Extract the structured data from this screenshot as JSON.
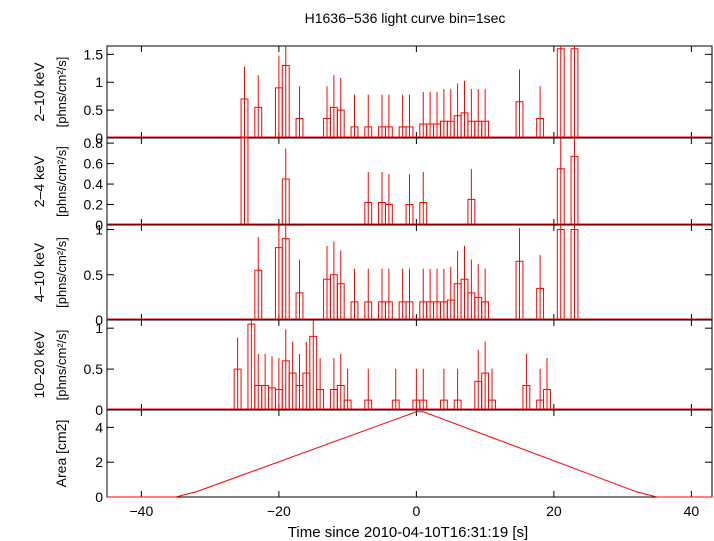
{
  "title": "H1636−536 light curve bin=1sec",
  "xlabel": "Time since 2010-04-10T16:31:19 [s]",
  "xticks": [
    "−40",
    "−20",
    "0",
    "20",
    "40"
  ],
  "colors": {
    "data": "#ff0000",
    "frame": "#000000"
  },
  "chart_data": [
    {
      "type": "line",
      "ylabel_top": "2–10 keV",
      "ylabel_bottom": "[phns/cm²/s]",
      "ylim": [
        0,
        1.65
      ],
      "yticks": [
        "0",
        "0.5",
        "1",
        "1.5"
      ],
      "x": [
        -25,
        -23,
        -20,
        -19,
        -17,
        -13,
        -12,
        -11,
        -9,
        -7,
        -5,
        -4,
        -2,
        -1,
        1,
        2,
        3,
        4,
        5,
        6,
        7,
        8,
        9,
        10,
        15,
        18,
        21,
        23
      ],
      "y": [
        0.7,
        0.55,
        0.9,
        1.3,
        0.35,
        0.35,
        0.55,
        0.5,
        0.2,
        0.2,
        0.2,
        0.2,
        0.2,
        0.2,
        0.25,
        0.25,
        0.25,
        0.3,
        0.3,
        0.4,
        0.45,
        0.3,
        0.3,
        0.3,
        0.65,
        0.35,
        1.6,
        1.6
      ]
    },
    {
      "type": "line",
      "ylabel_top": "2–4 keV",
      "ylabel_bottom": "[phns/cm²/s]",
      "ylim": [
        0,
        0.85
      ],
      "yticks": [
        "0",
        "0.2",
        "0.4",
        "0.6",
        "0.8"
      ],
      "x": [
        -25,
        -19,
        -7,
        -5,
        -4,
        -1,
        1,
        8,
        21,
        23
      ],
      "y": [
        0.85,
        0.45,
        0.22,
        0.22,
        0.2,
        0.2,
        0.22,
        0.25,
        0.55,
        0.67
      ]
    },
    {
      "type": "line",
      "ylabel_top": "4–10 keV",
      "ylabel_bottom": "[phns/cm²/s]",
      "ylim": [
        0,
        1.05
      ],
      "yticks": [
        "0",
        "0.5",
        "1"
      ],
      "x": [
        -23,
        -20,
        -19,
        -17,
        -13,
        -12,
        -11,
        -9,
        -7,
        -5,
        -4,
        -2,
        -1,
        1,
        2,
        3,
        4,
        5,
        6,
        7,
        8,
        9,
        10,
        15,
        18,
        21,
        23
      ],
      "y": [
        0.55,
        0.8,
        0.9,
        0.3,
        0.45,
        0.5,
        0.4,
        0.2,
        0.2,
        0.2,
        0.2,
        0.2,
        0.2,
        0.2,
        0.2,
        0.2,
        0.2,
        0.22,
        0.4,
        0.45,
        0.3,
        0.25,
        0.2,
        0.65,
        0.35,
        1.0,
        1.0
      ]
    },
    {
      "type": "line",
      "ylabel_top": "10–20 keV",
      "ylabel_bottom": "[phns/cm²/s]",
      "ylim": [
        0,
        1.1
      ],
      "yticks": [
        "0",
        "0.5",
        "1"
      ],
      "x": [
        -26,
        -24,
        -23,
        -22,
        -21,
        -20,
        -19,
        -18,
        -17,
        -16,
        -15,
        -14,
        -12,
        -11,
        -10,
        -7,
        -3,
        0,
        1,
        4,
        6,
        9,
        10,
        11,
        16,
        18,
        19
      ],
      "y": [
        0.5,
        1.05,
        0.3,
        0.3,
        0.27,
        0.25,
        0.6,
        0.45,
        0.3,
        0.45,
        0.9,
        0.25,
        0.25,
        0.3,
        0.12,
        0.12,
        0.12,
        0.12,
        0.12,
        0.12,
        0.12,
        0.35,
        0.45,
        0.12,
        0.3,
        0.12,
        0.25
      ]
    },
    {
      "type": "line",
      "ylabel": "Area [cm2]",
      "ylim": [
        0,
        5
      ],
      "yticks": [
        "0",
        "2",
        "4"
      ],
      "x": [
        -45,
        -35,
        -32,
        0,
        1,
        32,
        35,
        43
      ],
      "y": [
        0,
        0,
        0.3,
        4.9,
        4.9,
        0.3,
        0,
        0
      ]
    }
  ]
}
